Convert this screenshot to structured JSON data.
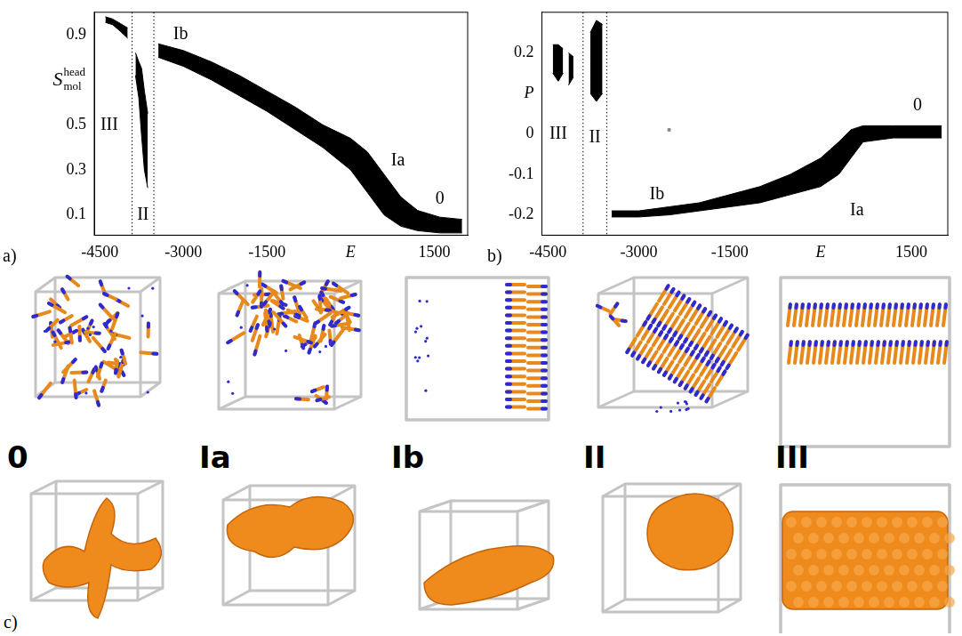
{
  "chart_data": [
    {
      "type": "band",
      "panel_label": "a)",
      "color": "#000000",
      "grid": false,
      "xlim": [
        -4600,
        2100
      ],
      "xticks": [
        -4500,
        -3000,
        -1500,
        {
          "value": 0,
          "label": "E"
        },
        1500
      ],
      "ylim": [
        0.01,
        1.0
      ],
      "yticks": [
        0.1,
        0.3,
        0.5,
        {
          "value": 0.7,
          "label": "S",
          "subscript": "mol",
          "superscript": "head"
        },
        0.9
      ],
      "vlines": [
        -3920,
        -3530
      ],
      "bands": [
        {
          "x": [
            -4400,
            -4270,
            -4130,
            -4000
          ],
          "low": [
            0.955,
            0.945,
            0.915,
            0.885
          ],
          "high": [
            0.98,
            0.97,
            0.95,
            0.93
          ]
        },
        {
          "x": [
            -3860,
            -3800,
            -3750,
            -3700,
            -3640
          ],
          "low": [
            0.72,
            0.62,
            0.45,
            0.3,
            0.22
          ],
          "high": [
            0.82,
            0.78,
            0.75,
            0.65,
            0.55
          ]
        },
        {
          "x": [
            -3450,
            -3000,
            -2500,
            -2000,
            -1500,
            -1000,
            -500,
            0,
            300,
            600,
            900,
            1200,
            1600,
            2000
          ],
          "low": [
            0.8,
            0.76,
            0.7,
            0.63,
            0.56,
            0.48,
            0.4,
            0.3,
            0.2,
            0.1,
            0.05,
            0.03,
            0.02,
            0.02
          ],
          "high": [
            0.86,
            0.83,
            0.78,
            0.72,
            0.65,
            0.58,
            0.5,
            0.44,
            0.38,
            0.28,
            0.18,
            0.12,
            0.09,
            0.08
          ]
        }
      ],
      "annotations": [
        {
          "text": "III",
          "x": -4330,
          "y": 0.5
        },
        {
          "text": "II",
          "x": -3725,
          "y": 0.1
        },
        {
          "text": "Ib",
          "x": -3050,
          "y": 0.9
        },
        {
          "text": "Ia",
          "x": 850,
          "y": 0.34
        },
        {
          "text": "0",
          "x": 1600,
          "y": 0.17
        }
      ]
    },
    {
      "type": "band",
      "panel_label": "b)",
      "color": "#000000",
      "grid": false,
      "xlim": [
        -4600,
        2100
      ],
      "xticks": [
        -4500,
        -3000,
        -1500,
        {
          "value": 0,
          "label": "E"
        },
        1500
      ],
      "ylim": [
        -0.25,
        0.3
      ],
      "yticks": [
        -0.2,
        -0.1,
        0,
        {
          "value": 0.1,
          "label": "P"
        },
        0.2
      ],
      "vlines": [
        -3920,
        -3530
      ],
      "bands": [
        {
          "x": [
            -4420,
            -4330,
            -4250
          ],
          "low": [
            0.15,
            0.13,
            0.15
          ],
          "high": [
            0.22,
            0.22,
            0.21
          ]
        },
        {
          "x": [
            -4160,
            -4080
          ],
          "low": [
            0.12,
            0.14
          ],
          "high": [
            0.2,
            0.19
          ]
        },
        {
          "x": [
            -3800,
            -3700,
            -3600
          ],
          "low": [
            0.1,
            0.08,
            0.1
          ],
          "high": [
            0.25,
            0.28,
            0.27
          ]
        },
        {
          "x": [
            -3450,
            -3000,
            -2500,
            -2000,
            -1500,
            -1000,
            -500,
            0,
            300,
            500,
            700,
            1200,
            2000
          ],
          "low": [
            -0.205,
            -0.205,
            -0.2,
            -0.19,
            -0.18,
            -0.17,
            -0.15,
            -0.13,
            -0.1,
            -0.06,
            -0.02,
            -0.01,
            -0.01
          ],
          "high": [
            -0.19,
            -0.19,
            -0.18,
            -0.17,
            -0.15,
            -0.13,
            -0.1,
            -0.06,
            -0.02,
            0.01,
            0.02,
            0.02,
            0.02
          ]
        }
      ],
      "points": {
        "x": [
          -2500
        ],
        "y": [
          0.01
        ],
        "color": "#888888"
      },
      "annotations": [
        {
          "text": "III",
          "x": -4330,
          "y": 0.0
        },
        {
          "text": "II",
          "x": -3725,
          "y": -0.01
        },
        {
          "text": "Ib",
          "x": -2700,
          "y": -0.15
        },
        {
          "text": "Ia",
          "x": 600,
          "y": -0.19
        },
        {
          "text": "0",
          "x": 1600,
          "y": 0.07
        }
      ]
    }
  ],
  "panel_c": {
    "panel_label": "c)",
    "panels": [
      "0",
      "Ia",
      "Ib",
      "II",
      "III"
    ]
  }
}
